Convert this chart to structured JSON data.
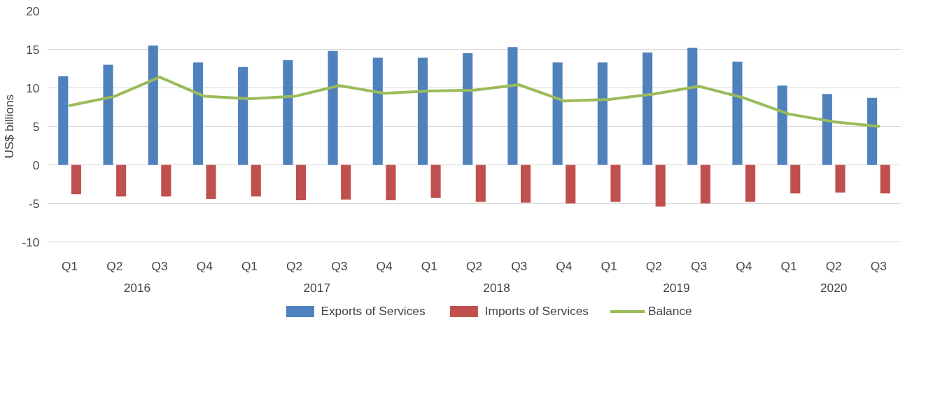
{
  "chart_data": {
    "type": "bar",
    "ylabel": "US$ billions",
    "categories": [
      "Q1",
      "Q2",
      "Q3",
      "Q4",
      "Q1",
      "Q2",
      "Q3",
      "Q4",
      "Q1",
      "Q2",
      "Q3",
      "Q4",
      "Q1",
      "Q2",
      "Q3",
      "Q4",
      "Q1",
      "Q2",
      "Q3"
    ],
    "annotations": [
      "2016",
      "2017",
      "2018",
      "2019",
      "2020"
    ],
    "series": [
      {
        "name": "Exports of Services",
        "color": "#4f81bd",
        "values": [
          11.5,
          13.0,
          15.5,
          13.3,
          12.7,
          13.6,
          14.8,
          13.9,
          13.9,
          14.5,
          15.3,
          13.3,
          13.3,
          14.6,
          15.2,
          13.4,
          10.3,
          9.2,
          8.7
        ]
      },
      {
        "name": "Imports of Services",
        "color": "#c0504d",
        "values": [
          -3.8,
          -4.1,
          -4.1,
          -4.4,
          -4.1,
          -4.6,
          -4.5,
          -4.6,
          -4.3,
          -4.8,
          -4.9,
          -5.0,
          -4.8,
          -5.4,
          -5.0,
          -4.8,
          -3.7,
          -3.6,
          -3.7
        ]
      },
      {
        "name": "Balance",
        "type": "line",
        "color": "#9bbb59",
        "values": [
          7.7,
          8.9,
          11.4,
          8.9,
          8.6,
          8.9,
          10.3,
          9.3,
          9.6,
          9.7,
          10.4,
          8.3,
          8.5,
          9.2,
          10.2,
          8.7,
          6.6,
          5.6,
          5.0
        ]
      }
    ],
    "ylim": [
      -10,
      20
    ],
    "yticks": [
      -10,
      -5,
      0,
      5,
      10,
      15,
      20
    ],
    "grid": "y",
    "legend": "bottom"
  }
}
